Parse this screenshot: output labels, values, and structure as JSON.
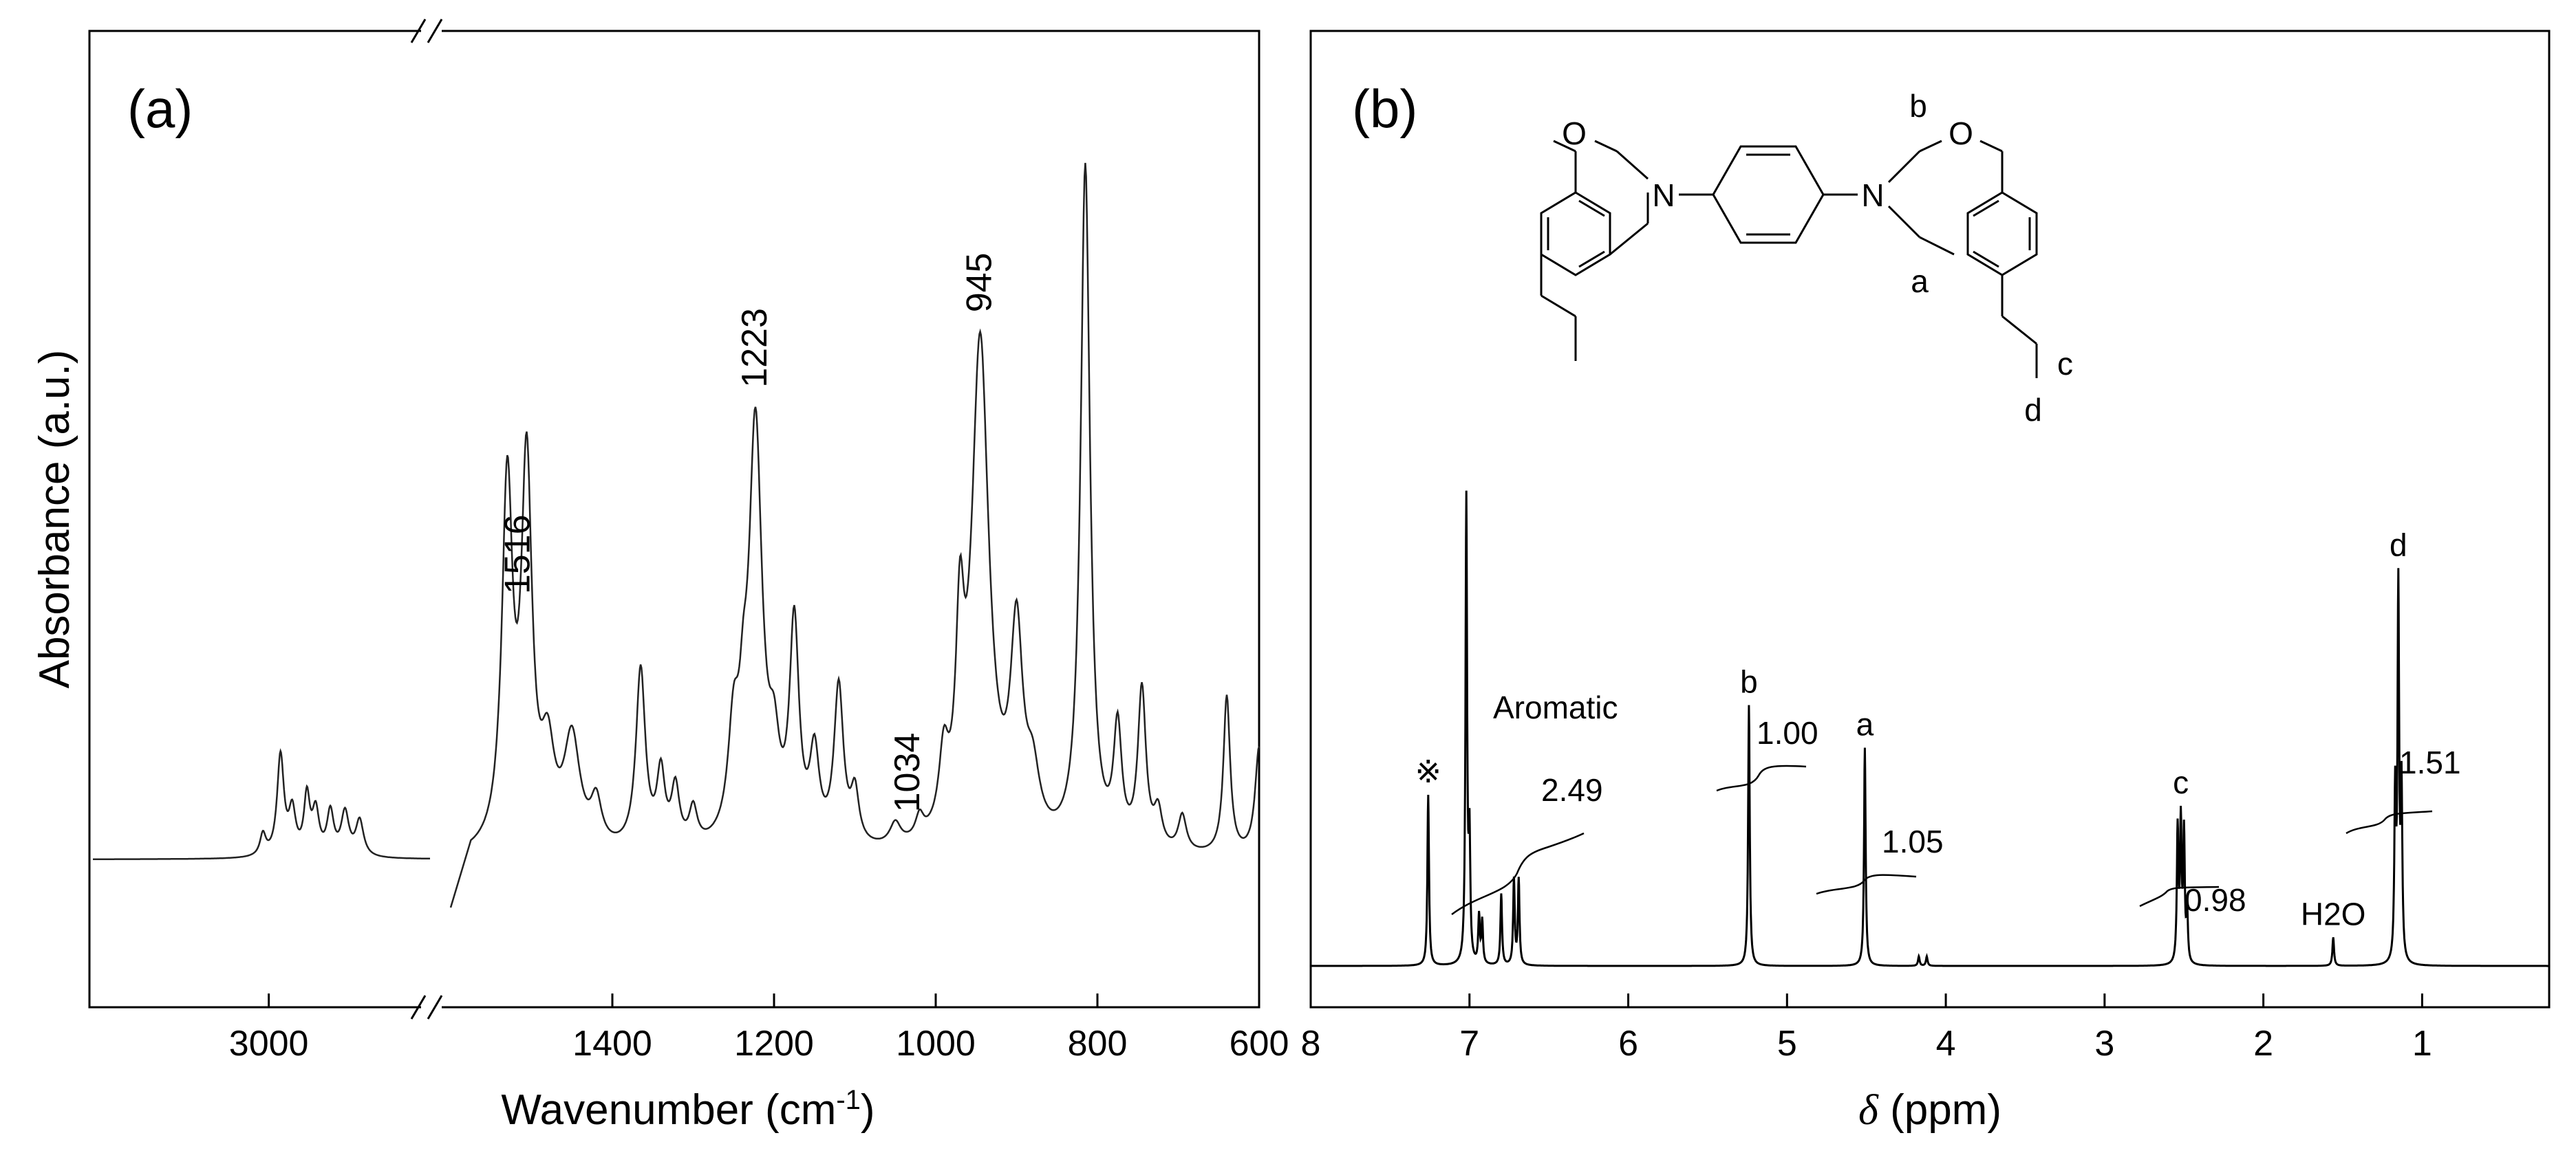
{
  "chart_data": [
    {
      "type": "line",
      "panel": "(a)",
      "xlabel": "Wavenumber (cm-1)",
      "xlabel_main": "Wavenumber (cm",
      "xlabel_sup": "-1",
      "xlabel_end": ")",
      "ylabel": "Absorbance (a.u.)",
      "x_axis_reversed": true,
      "x_axis_break": [
        2450,
        1600
      ],
      "xlim_left_segment": [
        3600,
        2450
      ],
      "xlim_right_segment": [
        1600,
        600
      ],
      "x_ticks": [
        {
          "value": 3000,
          "label": "3000"
        },
        {
          "value": 1400,
          "label": "1400"
        },
        {
          "value": 1200,
          "label": "1200"
        },
        {
          "value": 1000,
          "label": "1000"
        },
        {
          "value": 800,
          "label": "800"
        },
        {
          "value": 600,
          "label": "600"
        }
      ],
      "y_ticks": "none",
      "annotations": [
        {
          "x": 1516,
          "label": "1516"
        },
        {
          "x": 1223,
          "label": "1223"
        },
        {
          "x": 1034,
          "label": "1034"
        },
        {
          "x": 945,
          "label": "945"
        }
      ],
      "baseline": 0.15,
      "peaks": [
        {
          "x": 3020,
          "h": 0.03,
          "w": 12
        },
        {
          "x": 2960,
          "h": 0.14,
          "w": 14
        },
        {
          "x": 2920,
          "h": 0.06,
          "w": 14
        },
        {
          "x": 2870,
          "h": 0.08,
          "w": 12
        },
        {
          "x": 2840,
          "h": 0.06,
          "w": 14
        },
        {
          "x": 2790,
          "h": 0.06,
          "w": 14
        },
        {
          "x": 2740,
          "h": 0.06,
          "w": 16
        },
        {
          "x": 2690,
          "h": 0.05,
          "w": 16
        },
        {
          "x": 1530,
          "h": 0.5,
          "w": 8
        },
        {
          "x": 1506,
          "h": 0.52,
          "w": 8
        },
        {
          "x": 1480,
          "h": 0.12,
          "w": 10
        },
        {
          "x": 1450,
          "h": 0.15,
          "w": 12
        },
        {
          "x": 1420,
          "h": 0.06,
          "w": 8
        },
        {
          "x": 1365,
          "h": 0.25,
          "w": 7
        },
        {
          "x": 1340,
          "h": 0.1,
          "w": 6
        },
        {
          "x": 1322,
          "h": 0.08,
          "w": 6
        },
        {
          "x": 1300,
          "h": 0.05,
          "w": 6
        },
        {
          "x": 1250,
          "h": 0.14,
          "w": 8
        },
        {
          "x": 1238,
          "h": 0.1,
          "w": 6
        },
        {
          "x": 1223,
          "h": 0.58,
          "w": 10
        },
        {
          "x": 1200,
          "h": 0.1,
          "w": 8
        },
        {
          "x": 1175,
          "h": 0.3,
          "w": 7
        },
        {
          "x": 1150,
          "h": 0.12,
          "w": 7
        },
        {
          "x": 1120,
          "h": 0.22,
          "w": 7
        },
        {
          "x": 1100,
          "h": 0.07,
          "w": 6
        },
        {
          "x": 1050,
          "h": 0.03,
          "w": 8
        },
        {
          "x": 1020,
          "h": 0.03,
          "w": 6
        },
        {
          "x": 990,
          "h": 0.1,
          "w": 7
        },
        {
          "x": 970,
          "h": 0.25,
          "w": 6
        },
        {
          "x": 945,
          "h": 0.7,
          "w": 13
        },
        {
          "x": 900,
          "h": 0.28,
          "w": 9
        },
        {
          "x": 880,
          "h": 0.08,
          "w": 10
        },
        {
          "x": 815,
          "h": 0.95,
          "w": 7
        },
        {
          "x": 775,
          "h": 0.16,
          "w": 6
        },
        {
          "x": 745,
          "h": 0.22,
          "w": 6
        },
        {
          "x": 725,
          "h": 0.05,
          "w": 6
        },
        {
          "x": 695,
          "h": 0.05,
          "w": 6
        },
        {
          "x": 640,
          "h": 0.22,
          "w": 5
        },
        {
          "x": 600,
          "h": 0.15,
          "w": 6
        }
      ]
    },
    {
      "type": "line",
      "panel": "(b)",
      "xlabel_symbol": "δ",
      "xlabel_rest": " (ppm)",
      "x_axis_reversed": true,
      "xlim": [
        8,
        0.2
      ],
      "x_ticks": [
        8,
        7,
        6,
        5,
        4,
        3,
        2,
        1
      ],
      "y_ticks": "none",
      "peaks": [
        {
          "ppm": 7.26,
          "h": 0.36,
          "label": "※"
        },
        {
          "ppm": 7.02,
          "h": 0.98
        },
        {
          "ppm": 7.0,
          "h": 0.25
        },
        {
          "ppm": 6.94,
          "h": 0.1
        },
        {
          "ppm": 6.92,
          "h": 0.09
        },
        {
          "ppm": 6.8,
          "h": 0.15
        },
        {
          "ppm": 6.72,
          "h": 0.18
        },
        {
          "ppm": 6.69,
          "h": 0.18
        },
        {
          "ppm": 5.24,
          "h": 0.55,
          "label": "b"
        },
        {
          "ppm": 4.51,
          "h": 0.46,
          "label": "a"
        },
        {
          "ppm": 4.17,
          "h": 0.02
        },
        {
          "ppm": 4.12,
          "h": 0.02
        },
        {
          "ppm": 2.54,
          "h": 0.28
        },
        {
          "ppm": 2.52,
          "h": 0.29,
          "label": "c"
        },
        {
          "ppm": 2.5,
          "h": 0.27
        },
        {
          "ppm": 2.48,
          "h": 0.1
        },
        {
          "ppm": 1.56,
          "h": 0.06,
          "label": "H2O"
        },
        {
          "ppm": 1.17,
          "h": 0.35
        },
        {
          "ppm": 1.15,
          "h": 0.78,
          "label": "d"
        },
        {
          "ppm": 1.13,
          "h": 0.36
        }
      ],
      "text_annotations": [
        {
          "text": "Aromatic"
        },
        {
          "text": "2.49"
        },
        {
          "text": "1.00"
        },
        {
          "text": "1.05"
        },
        {
          "text": "0.98"
        },
        {
          "text": "1.51"
        }
      ],
      "structure_atoms": {
        "O": "O",
        "N": "N"
      },
      "structure_labels": [
        "b",
        "a",
        "c",
        "d"
      ]
    }
  ]
}
